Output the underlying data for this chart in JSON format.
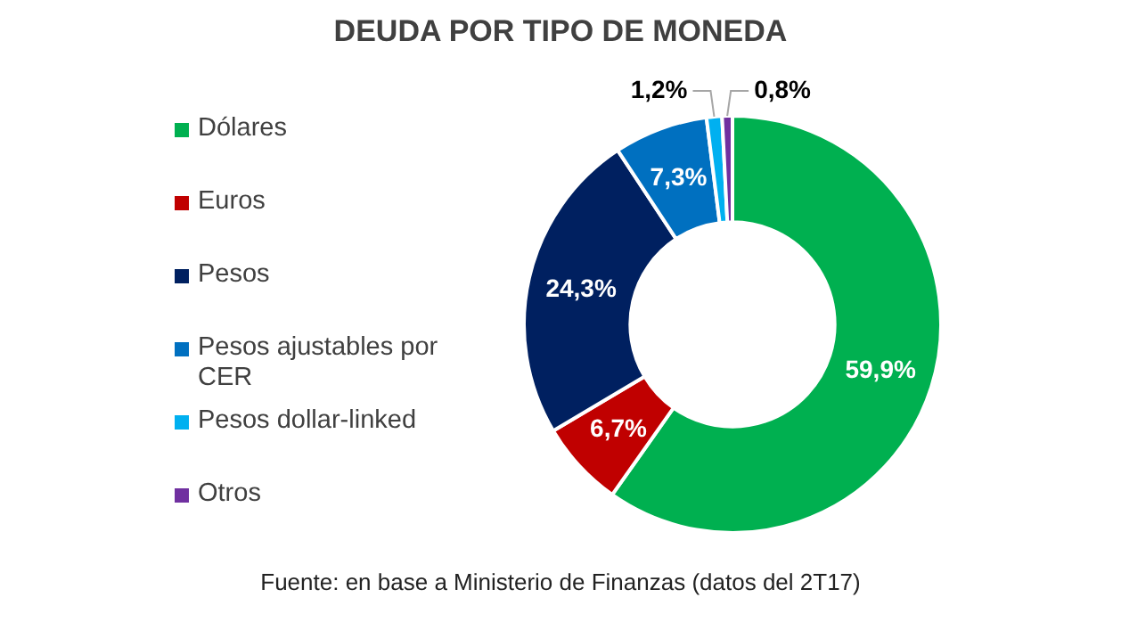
{
  "chart_data": {
    "type": "donut",
    "title": "DEUDA POR TIPO DE MONEDA",
    "categories": [
      "Dólares",
      "Euros",
      "Pesos",
      "Pesos ajustables por CER",
      "Pesos dollar-linked",
      "Otros"
    ],
    "values": [
      59.9,
      6.7,
      24.3,
      7.3,
      1.2,
      0.8
    ],
    "colors": [
      "#00b050",
      "#c00000",
      "#002060",
      "#0070c0",
      "#00b0f0",
      "#7030a0"
    ],
    "value_labels": [
      "59,9%",
      "6,7%",
      "24,3%",
      "7,3%",
      "1,2%",
      "0,8%"
    ],
    "legend": "left",
    "annotations": [
      "Fuente: en base a Ministerio de Finanzas (datos del 2T17)"
    ]
  }
}
